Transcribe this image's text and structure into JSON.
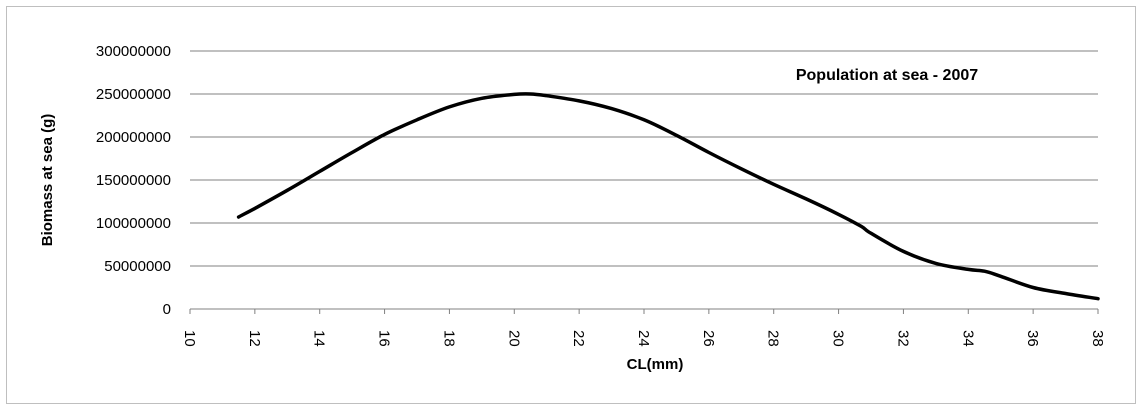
{
  "chart_data": {
    "type": "line",
    "title": "Population at sea - 2007",
    "xlabel": "CL(mm)",
    "ylabel": "Biomass at sea (g)",
    "xlim": [
      10,
      38
    ],
    "ylim": [
      0,
      300000000
    ],
    "grid": true,
    "x_ticks": [
      "10",
      "12",
      "14",
      "16",
      "18",
      "20",
      "22",
      "24",
      "26",
      "28",
      "30",
      "32",
      "34",
      "36",
      "38"
    ],
    "y_ticks": [
      "0",
      "50000000",
      "100000000",
      "150000000",
      "200000000",
      "250000000",
      "300000000"
    ],
    "color": "#000000",
    "series": [
      {
        "x": [
          11.5,
          12,
          13,
          14,
          15,
          16,
          17,
          18,
          19,
          20,
          20.5,
          21,
          22,
          23,
          24,
          25,
          26,
          27,
          28,
          29,
          30,
          30.7,
          31,
          32,
          33,
          34,
          34.5,
          35,
          36,
          37,
          38
        ],
        "values": [
          107000000,
          117000000,
          138000000,
          160000000,
          182000000,
          203000000,
          220000000,
          235000000,
          245000000,
          249500000,
          250000000,
          248000000,
          242000000,
          233000000,
          220000000,
          202000000,
          182000000,
          163000000,
          145000000,
          128000000,
          110000000,
          96000000,
          88000000,
          67000000,
          53000000,
          46000000,
          44000000,
          38000000,
          25000000,
          18000000,
          12000000
        ]
      }
    ]
  }
}
